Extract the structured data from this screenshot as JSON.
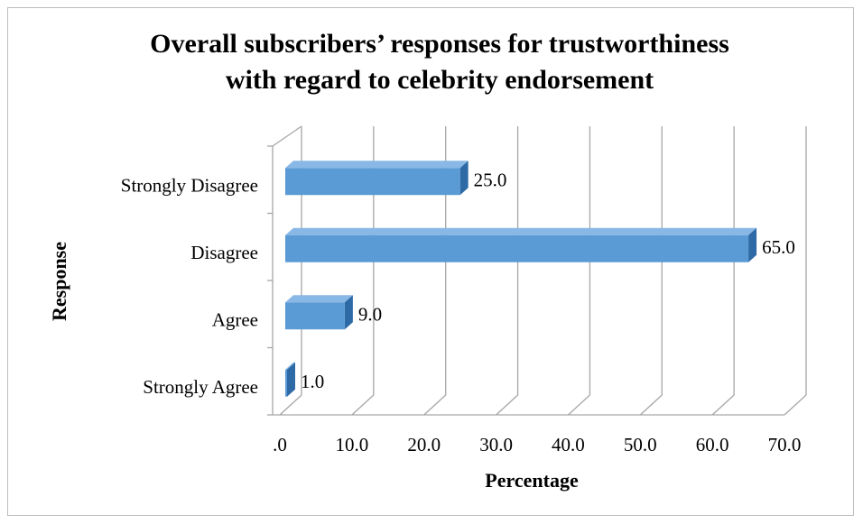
{
  "chart_data": {
    "type": "bar",
    "orientation": "horizontal",
    "style": "3d",
    "title": "Overall subscribers’ responses for trustworthiness with regard to celebrity endorsement",
    "title_lines": [
      "Overall subscribers’ responses for trustworthiness",
      "with regard to celebrity endorsement"
    ],
    "xlabel": "Percentage",
    "ylabel": "Response",
    "categories": [
      "Strongly Agree",
      "Agree",
      "Disagree",
      "Strongly Disagree"
    ],
    "values": [
      1.0,
      9.0,
      65.0,
      25.0
    ],
    "data_labels": [
      "1.0",
      "9.0",
      "65.0",
      "25.0"
    ],
    "xlim": [
      0,
      70
    ],
    "xticks": [
      0,
      10,
      20,
      30,
      40,
      50,
      60,
      70
    ],
    "xtick_labels": [
      ".0",
      "10.0",
      "20.0",
      "30.0",
      "40.0",
      "50.0",
      "60.0",
      "70.0"
    ],
    "grid": true,
    "legend": "none",
    "colors": {
      "bar_front": "#5b9bd5",
      "bar_top": "#8ab8e6",
      "bar_side": "#2e6aa6",
      "gridline": "#a6a6a6"
    }
  }
}
